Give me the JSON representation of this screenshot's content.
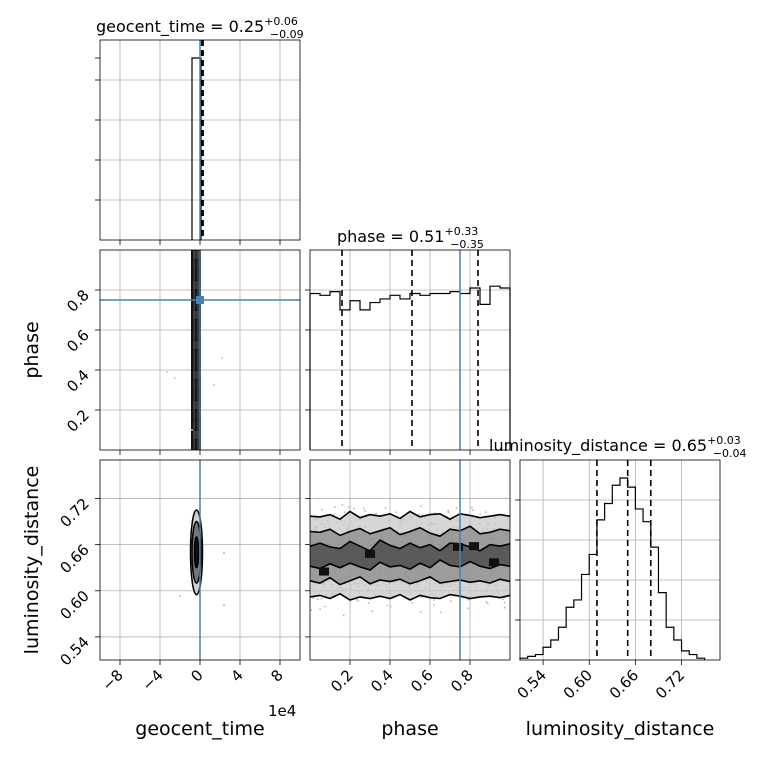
{
  "chart_data": {
    "type": "corner",
    "parameters": [
      "geocent_time",
      "phase",
      "luminosity_distance"
    ],
    "axis_labels": {
      "x": [
        "geocent_time",
        "phase",
        "luminosity_distance"
      ],
      "y": [
        "phase",
        "luminosity_distance"
      ]
    },
    "x_offset_label": "1e4",
    "titles": [
      {
        "param": "geocent_time",
        "text": "geocent_time = 0.25",
        "plus": "+0.06",
        "minus": "−0.09"
      },
      {
        "param": "phase",
        "text": "phase = 0.51",
        "plus": "+0.33",
        "minus": "−0.35"
      },
      {
        "param": "luminosity_distance",
        "text": "luminosity_distance = 0.65",
        "plus": "+0.03",
        "minus": "−0.04"
      }
    ],
    "ranges": {
      "geocent_time": [
        -10,
        10
      ],
      "phase": [
        0.0,
        1.0
      ],
      "luminosity_distance": [
        0.51,
        0.77
      ]
    },
    "ticks": {
      "geocent_time": [
        -8,
        -4,
        0,
        4,
        8
      ],
      "phase": [
        0.2,
        0.4,
        0.6,
        0.8
      ],
      "luminosity_distance": [
        0.54,
        0.6,
        0.66,
        0.72
      ]
    },
    "tick_labels": {
      "geocent_time": [
        "−8",
        "−4",
        "0",
        "4",
        "8"
      ],
      "phase": [
        "0.2",
        "0.4",
        "0.6",
        "0.8"
      ],
      "luminosity_distance": [
        "0.54",
        "0.60",
        "0.66",
        "0.72"
      ]
    },
    "truths": {
      "geocent_time": 0.0,
      "phase": 0.75
    },
    "truth_color": "#4682b4",
    "quantiles": {
      "geocent_time": [
        0.16,
        0.25,
        0.31
      ],
      "phase": [
        0.16,
        0.51,
        0.84
      ],
      "luminosity_distance": [
        0.61,
        0.65,
        0.68
      ]
    },
    "histograms": {
      "geocent_time": {
        "edges": [
          -0.8,
          0.1
        ],
        "counts": [
          1.0
        ]
      },
      "phase": {
        "edges": [
          0.0,
          0.05,
          0.1,
          0.15,
          0.2,
          0.25,
          0.3,
          0.35,
          0.4,
          0.45,
          0.5,
          0.55,
          0.6,
          0.65,
          0.7,
          0.75,
          0.8,
          0.85,
          0.9,
          0.95,
          1.0
        ],
        "counts": [
          0.86,
          0.85,
          0.87,
          0.77,
          0.82,
          0.77,
          0.81,
          0.83,
          0.85,
          0.83,
          0.86,
          0.85,
          0.86,
          0.86,
          0.87,
          0.86,
          0.89,
          0.8,
          0.9,
          0.89
        ]
      },
      "luminosity_distance": {
        "edges": [
          0.51,
          0.52,
          0.53,
          0.54,
          0.55,
          0.56,
          0.57,
          0.58,
          0.59,
          0.6,
          0.61,
          0.62,
          0.63,
          0.64,
          0.65,
          0.66,
          0.67,
          0.68,
          0.69,
          0.7,
          0.71,
          0.72,
          0.73,
          0.74,
          0.75
        ],
        "counts": [
          0.01,
          0.02,
          0.03,
          0.07,
          0.11,
          0.18,
          0.29,
          0.33,
          0.47,
          0.58,
          0.77,
          0.86,
          0.96,
          1.0,
          0.95,
          0.83,
          0.76,
          0.62,
          0.37,
          0.18,
          0.11,
          0.05,
          0.03,
          0.01
        ]
      }
    },
    "contours_2d": {
      "geocent_time_vs_phase": {
        "x_range": [
          -0.9,
          0.1
        ],
        "y_range": [
          0.0,
          1.0
        ]
      },
      "geocent_time_vs_luminosity_distance": {
        "center": [
          -0.35,
          0.65
        ],
        "half_widths_x": [
          0.2,
          0.45,
          0.6
        ],
        "half_widths_y": [
          0.02,
          0.04,
          0.055
        ]
      },
      "phase_vs_luminosity_distance": {
        "x": [
          0.0,
          0.05,
          0.1,
          0.15,
          0.2,
          0.25,
          0.3,
          0.35,
          0.4,
          0.45,
          0.5,
          0.55,
          0.6,
          0.65,
          0.7,
          0.75,
          0.8,
          0.85,
          0.9,
          0.95,
          1.0
        ],
        "levels": [
          {
            "low": [
              0.592,
              0.594,
              0.59,
              0.596,
              0.588,
              0.592,
              0.59,
              0.593,
              0.59,
              0.595,
              0.588,
              0.594,
              0.591,
              0.59,
              0.595,
              0.593,
              0.59,
              0.592,
              0.593,
              0.591,
              0.594
            ],
            "high": [
              0.697,
              0.696,
              0.699,
              0.693,
              0.703,
              0.695,
              0.699,
              0.697,
              0.7,
              0.694,
              0.703,
              0.696,
              0.699,
              0.7,
              0.693,
              0.7,
              0.698,
              0.695,
              0.697,
              0.699,
              0.697
            ]
          },
          {
            "low": [
              0.613,
              0.61,
              0.617,
              0.608,
              0.613,
              0.618,
              0.609,
              0.614,
              0.612,
              0.615,
              0.609,
              0.613,
              0.618,
              0.61,
              0.612,
              0.614,
              0.611,
              0.613,
              0.61,
              0.615,
              0.612
            ],
            "high": [
              0.677,
              0.676,
              0.68,
              0.672,
              0.677,
              0.681,
              0.674,
              0.678,
              0.682,
              0.673,
              0.677,
              0.682,
              0.675,
              0.671,
              0.68,
              0.678,
              0.684,
              0.674,
              0.676,
              0.68,
              0.678
            ]
          },
          {
            "low": [
              0.632,
              0.629,
              0.635,
              0.63,
              0.636,
              0.631,
              0.627,
              0.637,
              0.631,
              0.633,
              0.628,
              0.636,
              0.63,
              0.64,
              0.633,
              0.631,
              0.638,
              0.632,
              0.629,
              0.634,
              0.632
            ],
            "high": [
              0.658,
              0.662,
              0.657,
              0.655,
              0.664,
              0.658,
              0.652,
              0.666,
              0.659,
              0.655,
              0.662,
              0.656,
              0.66,
              0.652,
              0.662,
              0.661,
              0.657,
              0.652,
              0.66,
              0.658,
              0.661
            ]
          }
        ]
      }
    }
  }
}
